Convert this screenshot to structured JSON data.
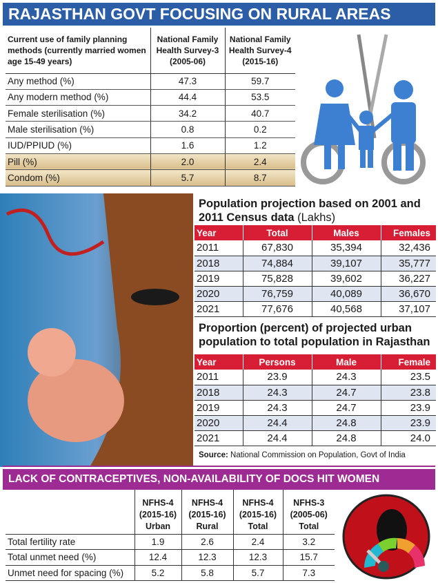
{
  "headline": "RAJASTHAN GOVT FOCUSING ON RURAL AREAS",
  "family_planning": {
    "headers": [
      "Current use of family planning methods (currently married women age 15-49 years)",
      "National Family Health Survey-3 (2005-06)",
      "National Family Health Survey-4 (2015-16)"
    ],
    "rows": [
      [
        "Any method (%)",
        "47.3",
        "59.7"
      ],
      [
        "Any modern method (%)",
        "44.4",
        "53.5"
      ],
      [
        "Female sterilisation (%)",
        "34.2",
        "40.7"
      ],
      [
        "Male sterilisation (%)",
        "0.8",
        "0.2"
      ],
      [
        "IUD/PPIUD (%)",
        "1.6",
        "1.2"
      ],
      [
        "Pill (%)",
        "2.0",
        "2.4"
      ],
      [
        "Condom (%)",
        "5.7",
        "8.7"
      ]
    ]
  },
  "population": {
    "title": "Population projection based on 2001 and 2011 Census data",
    "unit": "(Lakhs)",
    "headers": [
      "Year",
      "Total",
      "Males",
      "Females"
    ],
    "rows": [
      [
        "2011",
        "67,830",
        "35,394",
        "32,436"
      ],
      [
        "2018",
        "74,884",
        "39,107",
        "35,777"
      ],
      [
        "2019",
        "75,828",
        "39,602",
        "36,227"
      ],
      [
        "2020",
        "76,759",
        "40,089",
        "36,670"
      ],
      [
        "2021",
        "77,676",
        "40,568",
        "37,107"
      ]
    ]
  },
  "urban": {
    "title": "Proportion (percent) of projected urban population to total population in Rajasthan",
    "headers": [
      "Year",
      "Persons",
      "Male",
      "Female"
    ],
    "rows": [
      [
        "2011",
        "23.9",
        "24.3",
        "23.5"
      ],
      [
        "2018",
        "24.3",
        "24.7",
        "23.8"
      ],
      [
        "2019",
        "24.3",
        "24.7",
        "23.9"
      ],
      [
        "2020",
        "24.4",
        "24.8",
        "23.9"
      ],
      [
        "2021",
        "24.4",
        "24.8",
        "24.0"
      ]
    ]
  },
  "source": {
    "label": "Source:",
    "text": "National Commission on Population, Govt of India"
  },
  "bottom": {
    "headline": "LACK OF CONTRACEPTIVES, NON-AVAILABILITY OF DOCS HIT WOMEN",
    "headers": [
      "",
      "NFHS-4 (2015-16) Urban",
      "NFHS-4 (2015-16) Rural",
      "NFHS-4 (2015-16) Total",
      "NFHS-3 (2005-06) Total"
    ],
    "rows": [
      [
        "Total fertility rate",
        "1.9",
        "2.6",
        "2.4",
        "3.2"
      ],
      [
        "Total unmet need (%)",
        "12.4",
        "12.3",
        "12.3",
        "15.7"
      ],
      [
        "Unmet need for spacing (%)",
        "5.2",
        "5.8",
        "5.7",
        "7.3"
      ]
    ]
  },
  "colors": {
    "blue": "#2c5ea8",
    "red": "#d81e35",
    "magenta": "#9e2a93"
  }
}
